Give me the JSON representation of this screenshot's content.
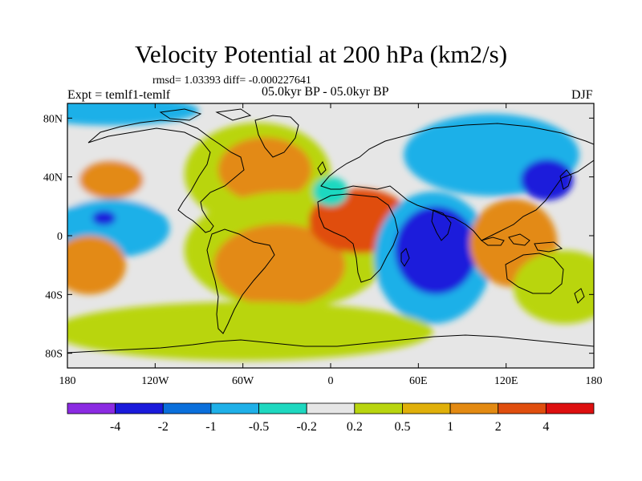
{
  "title": "Velocity Potential at 200 hPa (km2/s)",
  "stats_line": "rmsd= 1.03393 diff= -0.000227641",
  "experiment_label": "Expt = temlf1-temlf",
  "period_label": "05.0kyr BP - 05.0kyr BP",
  "season_label": "DJF",
  "map": {
    "lon_range": [
      -180,
      180
    ],
    "lat_range": [
      -90,
      90
    ],
    "x_ticks": [
      {
        "lon": -180,
        "label": "180"
      },
      {
        "lon": -120,
        "label": "120W"
      },
      {
        "lon": -60,
        "label": "60W"
      },
      {
        "lon": 0,
        "label": "0"
      },
      {
        "lon": 60,
        "label": "60E"
      },
      {
        "lon": 120,
        "label": "120E"
      },
      {
        "lon": 180,
        "label": "180"
      }
    ],
    "y_ticks": [
      {
        "lat": 80,
        "label": "80N"
      },
      {
        "lat": 40,
        "label": "40N"
      },
      {
        "lat": 0,
        "label": "0"
      },
      {
        "lat": -40,
        "label": "40S"
      },
      {
        "lat": -80,
        "label": "80S"
      }
    ],
    "background_color": "#e6e6e6",
    "regions": [
      {
        "name": "north-pacific-low",
        "level": 0.1,
        "cx": -145,
        "cy": 30,
        "rx": 35,
        "ry": 22
      },
      {
        "name": "north-pacific-core",
        "level": 1.2,
        "cx": -150,
        "cy": 38,
        "rx": 22,
        "ry": 13
      },
      {
        "name": "north-atlantic-high",
        "level": 0.3,
        "cx": -50,
        "cy": 42,
        "rx": 50,
        "ry": 35
      },
      {
        "name": "north-atlantic-core",
        "level": 1.5,
        "cx": -45,
        "cy": 45,
        "rx": 32,
        "ry": 22
      },
      {
        "name": "tropical-pacific-neg",
        "level": -0.8,
        "cx": -150,
        "cy": 5,
        "rx": 40,
        "ry": 20
      },
      {
        "name": "tropical-pacific-core",
        "level": -2.5,
        "cx": -155,
        "cy": 12,
        "rx": 8,
        "ry": 5
      },
      {
        "name": "arctic-neg",
        "level": -0.6,
        "cx": -150,
        "cy": 85,
        "rx": 60,
        "ry": 10
      },
      {
        "name": "south-america-atlantic",
        "level": 0.3,
        "cx": -30,
        "cy": -10,
        "rx": 70,
        "ry": 40
      },
      {
        "name": "south-atlantic-core",
        "level": 1.5,
        "cx": -35,
        "cy": -20,
        "rx": 45,
        "ry": 28
      },
      {
        "name": "africa-high",
        "level": 2.0,
        "cx": 20,
        "cy": 10,
        "rx": 35,
        "ry": 22
      },
      {
        "name": "africa-core",
        "level": 3.5,
        "cx": 22,
        "cy": 0,
        "rx": 10,
        "ry": 9
      },
      {
        "name": "indian-ocean-low",
        "level": -0.6,
        "cx": 70,
        "cy": -15,
        "rx": 40,
        "ry": 45
      },
      {
        "name": "indian-ocean-core",
        "level": -3.0,
        "cx": 72,
        "cy": -10,
        "rx": 28,
        "ry": 30
      },
      {
        "name": "north-asia-low",
        "level": -0.8,
        "cx": 110,
        "cy": 55,
        "rx": 60,
        "ry": 28
      },
      {
        "name": "japan-core",
        "level": -3.0,
        "cx": 148,
        "cy": 38,
        "rx": 18,
        "ry": 14
      },
      {
        "name": "maritime-continent-high",
        "level": 1.5,
        "cx": 125,
        "cy": -5,
        "rx": 30,
        "ry": 30
      },
      {
        "name": "south-pacific-high",
        "level": 0.4,
        "cx": 160,
        "cy": -35,
        "rx": 35,
        "ry": 25
      },
      {
        "name": "south-pacific-core",
        "level": 1.5,
        "cx": -165,
        "cy": -20,
        "rx": 25,
        "ry": 20
      },
      {
        "name": "southern-ocean",
        "level": 0.3,
        "cx": -60,
        "cy": -65,
        "rx": 130,
        "ry": 20
      },
      {
        "name": "mediterranean-neg",
        "level": -0.5,
        "cx": 0,
        "cy": 30,
        "rx": 12,
        "ry": 10
      }
    ]
  },
  "colorbar": {
    "colors": [
      "#8b2be2",
      "#1a1adb",
      "#0a6fdb",
      "#1fb0e8",
      "#1ed8c0",
      "#e6e6e6",
      "#b9d50f",
      "#e0b00a",
      "#e38a12",
      "#e04e0e",
      "#dd0f0f"
    ],
    "labels": [
      "-4",
      "-2",
      "-1",
      "-0.5",
      "-0.2",
      "0.2",
      "0.5",
      "1",
      "2",
      "4"
    ],
    "levels": [
      -4,
      -2,
      -1,
      -0.5,
      -0.2,
      0.2,
      0.5,
      1,
      2,
      4
    ]
  }
}
